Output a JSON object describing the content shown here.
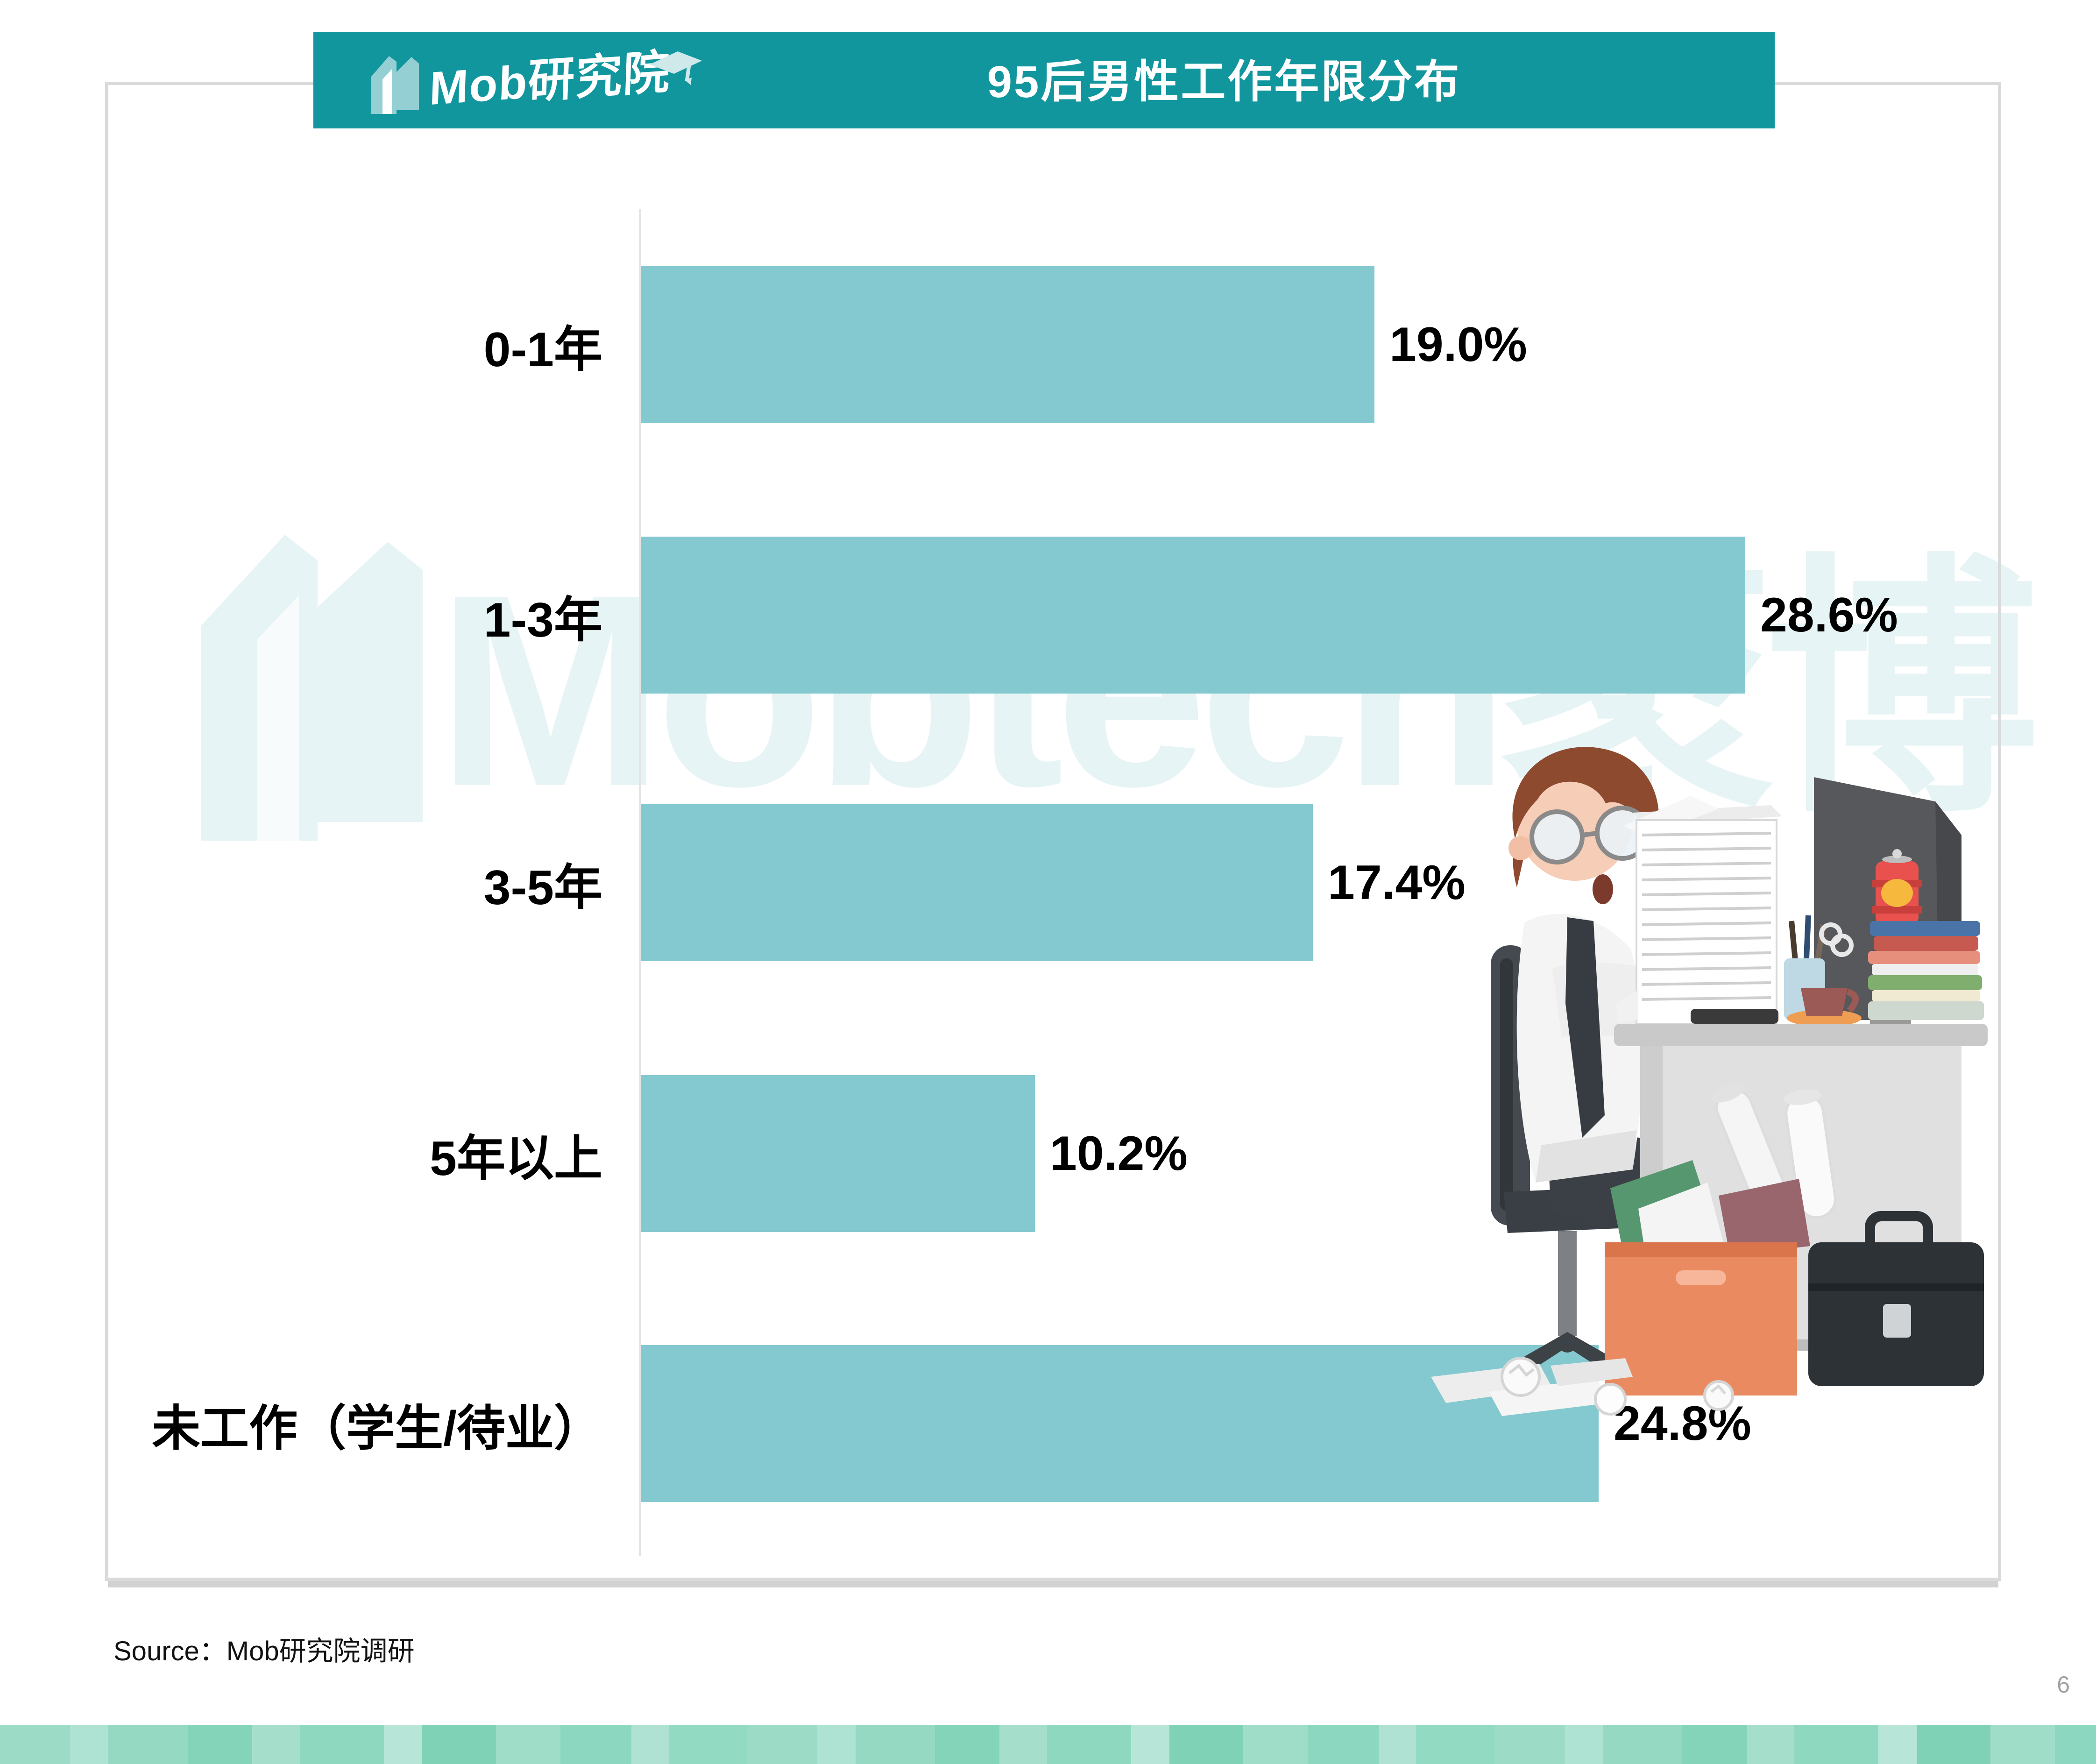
{
  "banner": {
    "logo_text": "Mob研究院",
    "title": "95后男性工作年限分布"
  },
  "chart_data": {
    "type": "bar",
    "orientation": "horizontal",
    "title": "95后男性工作年限分布",
    "categories": [
      "0-1年",
      "1-3年",
      "3-5年",
      "5年以上",
      "未工作（学生/待业）"
    ],
    "values": [
      19.0,
      28.6,
      17.4,
      10.2,
      24.8
    ],
    "value_labels": [
      "19.0%",
      "28.6%",
      "17.4%",
      "10.2%",
      "24.8%"
    ],
    "unit": "%",
    "xlim": [
      0,
      30
    ],
    "grid": false,
    "legend": "none",
    "bar_color": "#84c9cf"
  },
  "watermark": {
    "text": "Mobtech袤博"
  },
  "footer": {
    "source_label": "Source：Mob研究院调研",
    "page_number": "6"
  },
  "colors": {
    "banner_teal": "#12969e",
    "bar_fill": "#84c9cf",
    "frame_border": "#dadada",
    "watermark_tint": "rgba(18,150,158,0.10)",
    "footer_mint": "#9cdbc5"
  }
}
